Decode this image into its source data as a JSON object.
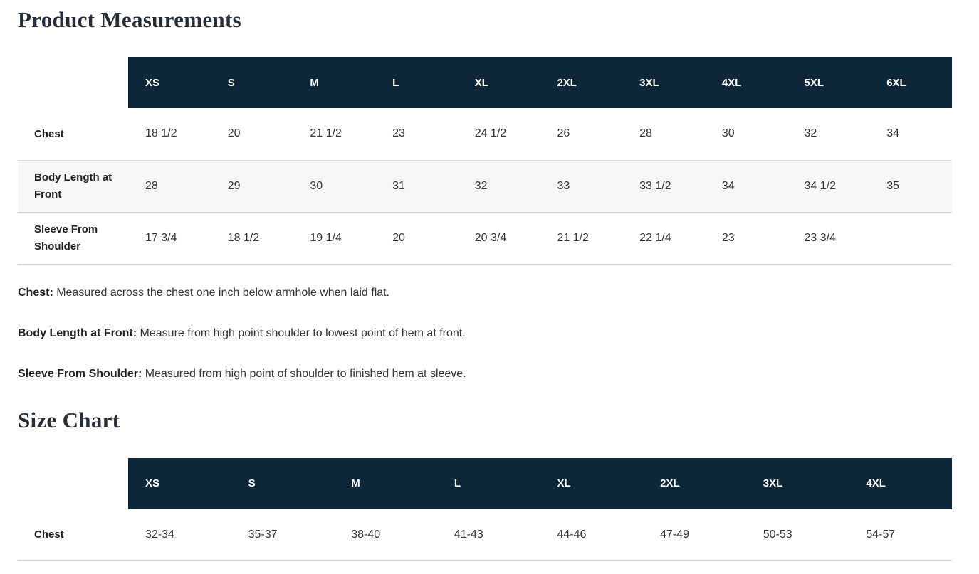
{
  "colors": {
    "table_header_bg": "#0d2638",
    "table_header_text": "#ffffff",
    "heading_text": "#242e38",
    "body_text": "#333333",
    "striped_row_bg": "#f7f7f7",
    "row_border": "#d8d8d8"
  },
  "product_measurements": {
    "title": "Product Measurements",
    "columns": [
      "XS",
      "S",
      "M",
      "L",
      "XL",
      "2XL",
      "3XL",
      "4XL",
      "5XL",
      "6XL"
    ],
    "rows": [
      {
        "label": "Chest",
        "values": [
          "18 1/2",
          "20",
          "21 1/2",
          "23",
          "24 1/2",
          "26",
          "28",
          "30",
          "32",
          "34"
        ]
      },
      {
        "label": "Body Length at Front",
        "values": [
          "28",
          "29",
          "30",
          "31",
          "32",
          "33",
          "33 1/2",
          "34",
          "34 1/2",
          "35"
        ]
      },
      {
        "label": "Sleeve From Shoulder",
        "values": [
          "17 3/4",
          "18 1/2",
          "19 1/4",
          "20",
          "20 3/4",
          "21 1/2",
          "22 1/4",
          "23",
          "23 3/4",
          ""
        ]
      }
    ],
    "notes": [
      {
        "term": "Chest:",
        "definition": " Measured across the chest one inch below armhole when laid flat."
      },
      {
        "term": "Body Length at Front:",
        "definition": " Measure from high point shoulder to lowest point of hem at front."
      },
      {
        "term": "Sleeve From Shoulder:",
        "definition": " Measured from high point of shoulder to finished hem at sleeve."
      }
    ]
  },
  "size_chart": {
    "title": "Size Chart",
    "columns": [
      "XS",
      "S",
      "M",
      "L",
      "XL",
      "2XL",
      "3XL",
      "4XL"
    ],
    "rows": [
      {
        "label": "Chest",
        "values": [
          "32-34",
          "35-37",
          "38-40",
          "41-43",
          "44-46",
          "47-49",
          "50-53",
          "54-57"
        ]
      }
    ]
  }
}
